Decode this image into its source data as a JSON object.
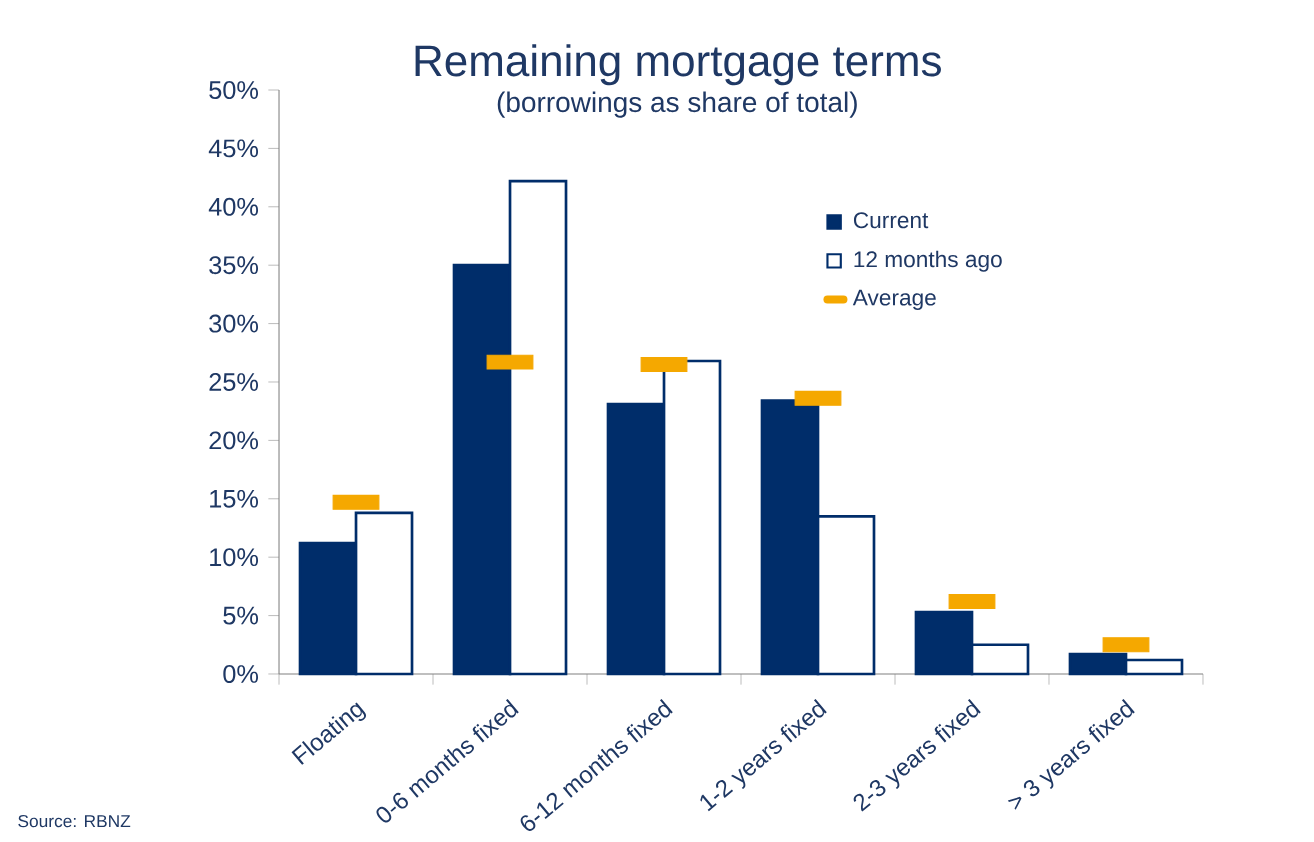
{
  "chart_data": {
    "type": "bar",
    "title": "Remaining mortgage terms",
    "subtitle": "(borrowings as share of total)",
    "categories": [
      "Floating",
      "0-6 months fixed",
      "6-12 months fixed",
      "1-2 years fixed",
      "2-3 years fixed",
      "> 3 years fixed"
    ],
    "series": [
      {
        "name": "Current",
        "color": "#002d6a",
        "values": [
          11.2,
          35.0,
          23.1,
          23.4,
          5.3,
          1.7
        ]
      },
      {
        "name": "12 months ago",
        "color": "#ffffff",
        "values": [
          13.8,
          42.2,
          26.8,
          13.5,
          2.5,
          1.2
        ]
      },
      {
        "name": "Average",
        "type": "scatter",
        "color": "#f5a800",
        "values": [
          14.7,
          26.7,
          26.5,
          23.6,
          6.2,
          2.5
        ]
      }
    ],
    "ylim": [
      0,
      50
    ],
    "yticks": [
      {
        "value": 0,
        "label": "0%"
      },
      {
        "value": 5,
        "label": "5%"
      },
      {
        "value": 10,
        "label": "10%"
      },
      {
        "value": 15,
        "label": "15%"
      },
      {
        "value": 20,
        "label": "20%"
      },
      {
        "value": 25,
        "label": "25%"
      },
      {
        "value": 30,
        "label": "30%"
      },
      {
        "value": 35,
        "label": "35%"
      },
      {
        "value": 40,
        "label": "40%"
      },
      {
        "value": 45,
        "label": "45%"
      },
      {
        "value": 50,
        "label": "50%"
      }
    ],
    "legend": "top right",
    "annotations": [
      "Source: RBNZ"
    ]
  }
}
